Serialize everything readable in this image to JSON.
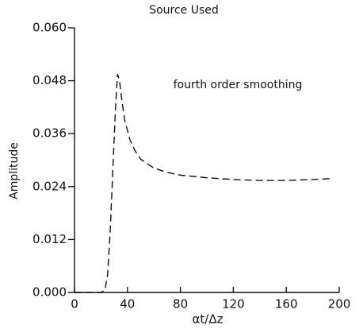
{
  "chart_data": {
    "type": "line",
    "title": "Source Used",
    "xlabel": "αt/Δz",
    "ylabel": "Amplitude",
    "annotation": "fourth order smoothing",
    "series": [
      {
        "name": null,
        "color": "#111111",
        "x": [
          0,
          10,
          20,
          23,
          25,
          27,
          29,
          31,
          32.5,
          34,
          36,
          38,
          42,
          46,
          50,
          60,
          70,
          80,
          100,
          120,
          140,
          160,
          180,
          193
        ],
        "values": [
          0,
          0,
          0,
          0.0005,
          0.004,
          0.014,
          0.028,
          0.042,
          0.0495,
          0.048,
          0.043,
          0.039,
          0.0345,
          0.032,
          0.0302,
          0.0282,
          0.0272,
          0.0266,
          0.026,
          0.0256,
          0.0254,
          0.0254,
          0.0256,
          0.0258
        ]
      }
    ],
    "xlim": [
      0,
      200
    ],
    "xticks": [
      0,
      40,
      80,
      120,
      160,
      200
    ],
    "ylim": [
      0,
      0.06
    ],
    "yticks": [
      {
        "value": 0,
        "label": "0.000"
      },
      {
        "value": 0.012,
        "label": "0.012"
      },
      {
        "value": 0.024,
        "label": "0.024"
      },
      {
        "value": 0.036,
        "label": "0.036"
      },
      {
        "value": 0.048,
        "label": "0.048"
      },
      {
        "value": 0.06,
        "label": "0.060"
      }
    ],
    "dashed": true
  }
}
